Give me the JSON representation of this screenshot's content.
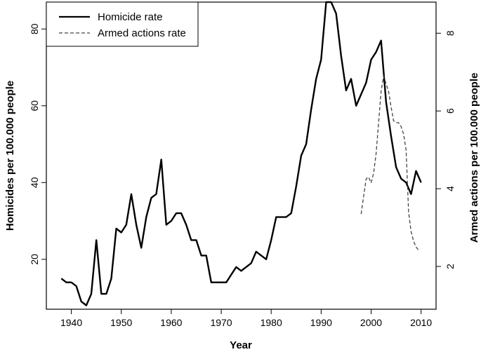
{
  "chart_data": {
    "type": "line",
    "title": "",
    "xlabel": "Year",
    "ylabel_left": "Homicides per 100.000 people",
    "ylabel_right": "Armed actions per 100.000 people",
    "xlim": [
      1935,
      2013
    ],
    "ylim_left": [
      7,
      87
    ],
    "ylim_right": [
      0.9,
      8.8
    ],
    "x_ticks": [
      1940,
      1950,
      1960,
      1970,
      1980,
      1990,
      2000,
      2010
    ],
    "y_ticks_left": [
      20,
      40,
      60,
      80
    ],
    "y_ticks_right": [
      2,
      4,
      6,
      8
    ],
    "grid": false,
    "legend_position": "top-left",
    "series": [
      {
        "name": "Homicide rate",
        "axis": "left",
        "style": "solid",
        "color": "#000000",
        "x": [
          1938,
          1939,
          1940,
          1941,
          1942,
          1943,
          1944,
          1945,
          1946,
          1947,
          1948,
          1949,
          1950,
          1951,
          1952,
          1953,
          1954,
          1955,
          1956,
          1957,
          1958,
          1959,
          1960,
          1961,
          1962,
          1963,
          1964,
          1965,
          1966,
          1967,
          1968,
          1969,
          1970,
          1971,
          1972,
          1973,
          1974,
          1975,
          1976,
          1977,
          1978,
          1979,
          1980,
          1981,
          1982,
          1983,
          1984,
          1985,
          1986,
          1987,
          1988,
          1989,
          1990,
          1991,
          1992,
          1993,
          1994,
          1995,
          1996,
          1997,
          1998,
          1999,
          2000,
          2001,
          2002,
          2003,
          2004,
          2005,
          2006,
          2007,
          2008,
          2009,
          2010
        ],
        "values": [
          15,
          14,
          14,
          13,
          9,
          8,
          11,
          25,
          11,
          11,
          15,
          28,
          27,
          29,
          37,
          29,
          23,
          31,
          36,
          37,
          46,
          29,
          30,
          32,
          32,
          29,
          25,
          25,
          21,
          21,
          14,
          14,
          14,
          14,
          16,
          18,
          17,
          18,
          19,
          22,
          21,
          20,
          25,
          31,
          31,
          31,
          32,
          39,
          47,
          50,
          59,
          67,
          72,
          87,
          87,
          84,
          73,
          64,
          67,
          60,
          63,
          66,
          72,
          74,
          77,
          61,
          52,
          44,
          41,
          40,
          37,
          43,
          40
        ]
      },
      {
        "name": "Armed actions rate",
        "axis": "right",
        "style": "dashed",
        "color": "#444444",
        "x": [
          1998,
          1998.5,
          1999,
          1999.5,
          2000,
          2000.5,
          2001,
          2001.5,
          2002,
          2002.5,
          2003,
          2003.5,
          2004,
          2004.5,
          2005,
          2005.5,
          2006,
          2006.5,
          2007,
          2007.5,
          2008,
          2008.5,
          2009,
          2009.5
        ],
        "values": [
          3.35,
          3.8,
          4.25,
          4.3,
          4.15,
          4.4,
          4.9,
          5.7,
          6.5,
          6.9,
          6.7,
          6.5,
          6.1,
          5.75,
          5.7,
          5.7,
          5.6,
          5.4,
          5.0,
          3.4,
          2.9,
          2.65,
          2.5,
          2.42
        ]
      }
    ]
  }
}
